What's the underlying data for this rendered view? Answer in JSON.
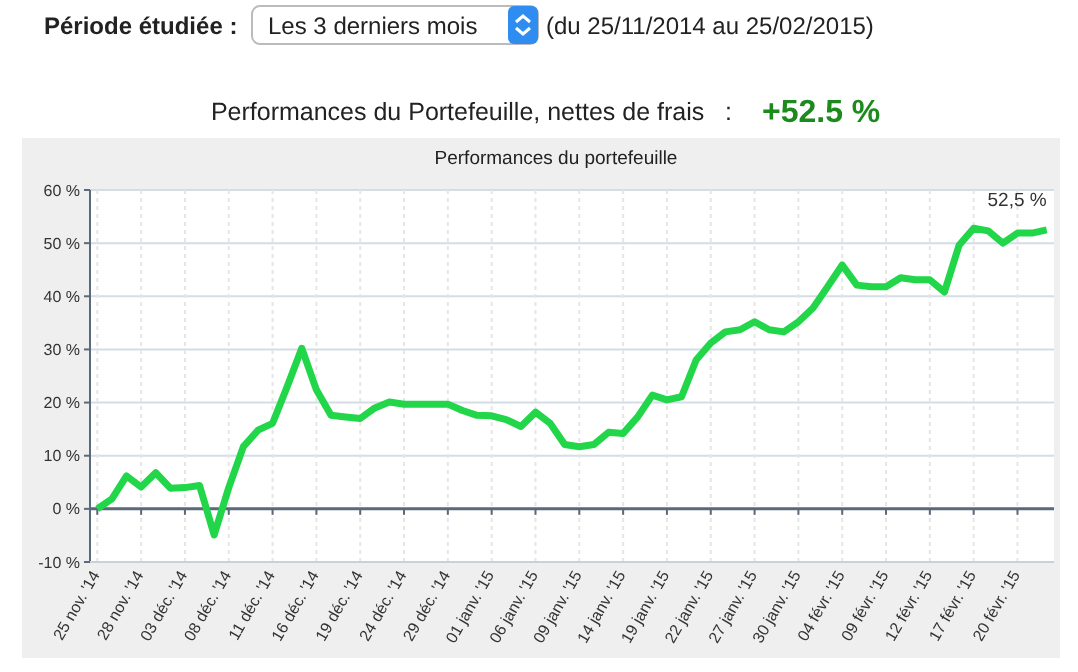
{
  "chart_data": {
    "type": "line",
    "title": "Performances du portefeuille",
    "subtitle": "Performances du Portefeuille, nettes de frais   :",
    "annotations": [
      "Période étudiée :",
      "Les 3 derniers mois",
      "(du 25/11/2014 au 25/02/2015)",
      "+52.5 %",
      {
        "text": "52,5 %",
        "y": 52.5
      }
    ],
    "categories": [
      "25 nov. '14",
      null,
      null,
      "28 nov. '14",
      null,
      null,
      "03 déc. '14",
      null,
      null,
      "08 déc. '14",
      null,
      null,
      "11 déc. '14",
      null,
      null,
      "16 déc. '14",
      null,
      null,
      "19 déc. '14",
      null,
      null,
      "24 déc. '14",
      null,
      null,
      "29 déc. '14",
      null,
      null,
      "01 janv. '15",
      null,
      null,
      "06 janv. '15",
      null,
      null,
      "09 janv. '15",
      null,
      null,
      "14 janv. '15",
      null,
      null,
      "19 janv. '15",
      null,
      null,
      "22 janv. '15",
      null,
      null,
      "27 janv. '15",
      null,
      null,
      "30 janv. '15",
      null,
      null,
      "04 févr. '15",
      null,
      null,
      "09 févr. '15",
      null,
      null,
      "12 févr. '15",
      null,
      null,
      "17 févr. '15",
      null,
      null,
      "20 févr. '15",
      null,
      null
    ],
    "series": [
      {
        "color": "#22d64a",
        "values": [
          0,
          1.9,
          6.2,
          4.1,
          6.8,
          3.9,
          4,
          4.4,
          -4.9,
          4,
          11.7,
          14.8,
          16.1,
          23,
          30.2,
          22.4,
          17.6,
          17.3,
          17,
          19,
          20.1,
          19.7,
          19.7,
          19.7,
          19.7,
          18.5,
          17.6,
          17.5,
          16.8,
          15.5,
          18.2,
          16.1,
          12.1,
          11.7,
          12.1,
          14.4,
          14.2,
          17.3,
          21.4,
          20.5,
          21.1,
          28,
          31.2,
          33.3,
          33.7,
          35.2,
          33.7,
          33.3,
          35.2,
          37.8,
          41.8,
          45.9,
          42.1,
          41.8,
          41.8,
          43.5,
          43.1,
          43.1,
          40.8,
          49.6,
          52.8,
          52.3,
          50,
          51.9,
          51.9,
          52.5
        ]
      }
    ],
    "ylim": [
      -10,
      60
    ],
    "yticks": [
      {
        "value": -10,
        "label": "-10 %"
      },
      {
        "value": 0,
        "label": "0 %"
      },
      {
        "value": 10,
        "label": "10 %"
      },
      {
        "value": 20,
        "label": "20 %"
      },
      {
        "value": 30,
        "label": "30 %"
      },
      {
        "value": 40,
        "label": "40 %"
      },
      {
        "value": 50,
        "label": "50 %"
      },
      {
        "value": 60,
        "label": "60 %"
      }
    ],
    "grid": true,
    "marker": "none",
    "line_style": "solid"
  }
}
